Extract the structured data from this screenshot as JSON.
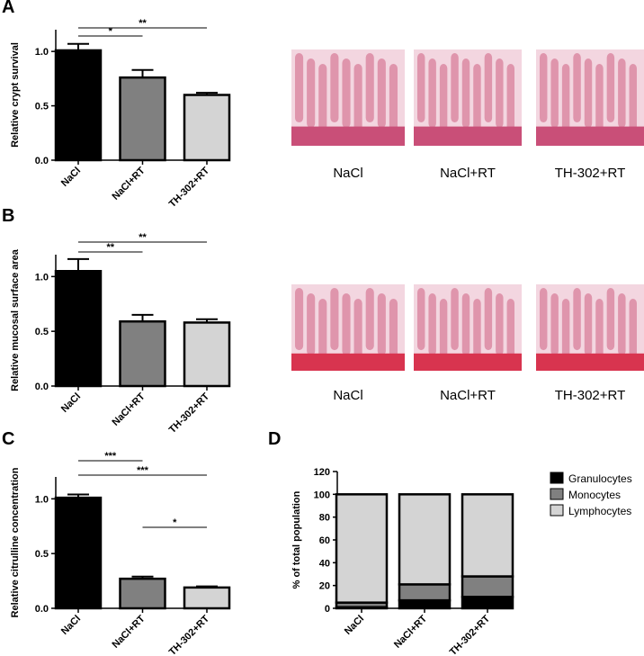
{
  "chart_data": [
    {
      "type": "bar",
      "panel_label": "A",
      "y_label": "Relative crypt survival",
      "categories": [
        "NaCl",
        "NaCl+RT",
        "TH-302+RT"
      ],
      "values": [
        1.01,
        0.76,
        0.6
      ],
      "errors": [
        0.06,
        0.07,
        0.02
      ],
      "colors": [
        "#000000",
        "#808080",
        "#d4d4d4"
      ],
      "ylim": [
        0,
        1.2
      ],
      "yticks": [
        {
          "value": 0,
          "label": "0.0"
        },
        {
          "value": 0.5,
          "label": "0.5"
        },
        {
          "value": 1,
          "label": "1.0"
        }
      ],
      "annotations": [
        {
          "text": "*",
          "between": [
            "NaCl",
            "NaCl+RT"
          ]
        },
        {
          "text": "**",
          "between": [
            "NaCl",
            "TH-302+RT"
          ]
        }
      ]
    },
    {
      "type": "bar",
      "panel_label": "B",
      "y_label": "Relative mucosal surface area",
      "categories": [
        "NaCl",
        "NaCl+RT",
        "TH-302+RT"
      ],
      "values": [
        1.05,
        0.59,
        0.58
      ],
      "errors": [
        0.11,
        0.06,
        0.03
      ],
      "colors": [
        "#000000",
        "#808080",
        "#d4d4d4"
      ],
      "ylim": [
        0,
        1.2
      ],
      "yticks": [
        {
          "value": 0,
          "label": "0.0"
        },
        {
          "value": 0.5,
          "label": "0.5"
        },
        {
          "value": 1,
          "label": "1.0"
        }
      ],
      "annotations": [
        {
          "text": "**",
          "between": [
            "NaCl",
            "NaCl+RT"
          ]
        },
        {
          "text": "**",
          "between": [
            "NaCl",
            "TH-302+RT"
          ]
        }
      ]
    },
    {
      "type": "bar",
      "panel_label": "C",
      "y_label": "Relative citrulline concentration",
      "categories": [
        "NaCl",
        "NaCl+RT",
        "TH-302+RT"
      ],
      "values": [
        1.01,
        0.27,
        0.19
      ],
      "errors": [
        0.03,
        0.02,
        0.01
      ],
      "colors": [
        "#000000",
        "#808080",
        "#d4d4d4"
      ],
      "ylim": [
        0,
        1.2
      ],
      "yticks": [
        {
          "value": 0,
          "label": "0.0"
        },
        {
          "value": 0.5,
          "label": "0.5"
        },
        {
          "value": 1,
          "label": "1.0"
        }
      ],
      "annotations": [
        {
          "text": "***",
          "between": [
            "NaCl",
            "NaCl+RT"
          ]
        },
        {
          "text": "***",
          "between": [
            "NaCl",
            "TH-302+RT"
          ]
        },
        {
          "text": "*",
          "between": [
            "NaCl+RT",
            "TH-302+RT"
          ]
        }
      ]
    },
    {
      "type": "stacked_bar",
      "panel_label": "D",
      "y_label": "% of total population",
      "categories": [
        "NaCl",
        "NaCl+RT",
        "TH-302+RT"
      ],
      "series": [
        {
          "name": "Granulocytes",
          "color": "#000000",
          "values": [
            1,
            7,
            10
          ]
        },
        {
          "name": "Monocytes",
          "color": "#808080",
          "values": [
            4,
            14,
            18
          ]
        },
        {
          "name": "Lymphocytes",
          "color": "#d4d4d4",
          "values": [
            95,
            79,
            72
          ]
        }
      ],
      "ylim": [
        0,
        120
      ],
      "yticks": [
        0,
        20,
        40,
        60,
        80,
        100,
        120
      ],
      "legend": "upper right"
    }
  ],
  "micrographs": [
    {
      "labels": [
        "NaCl",
        "NaCl+RT",
        "TH-302+RT"
      ]
    },
    {
      "labels": [
        "NaCl",
        "NaCl+RT",
        "TH-302+RT"
      ]
    }
  ]
}
